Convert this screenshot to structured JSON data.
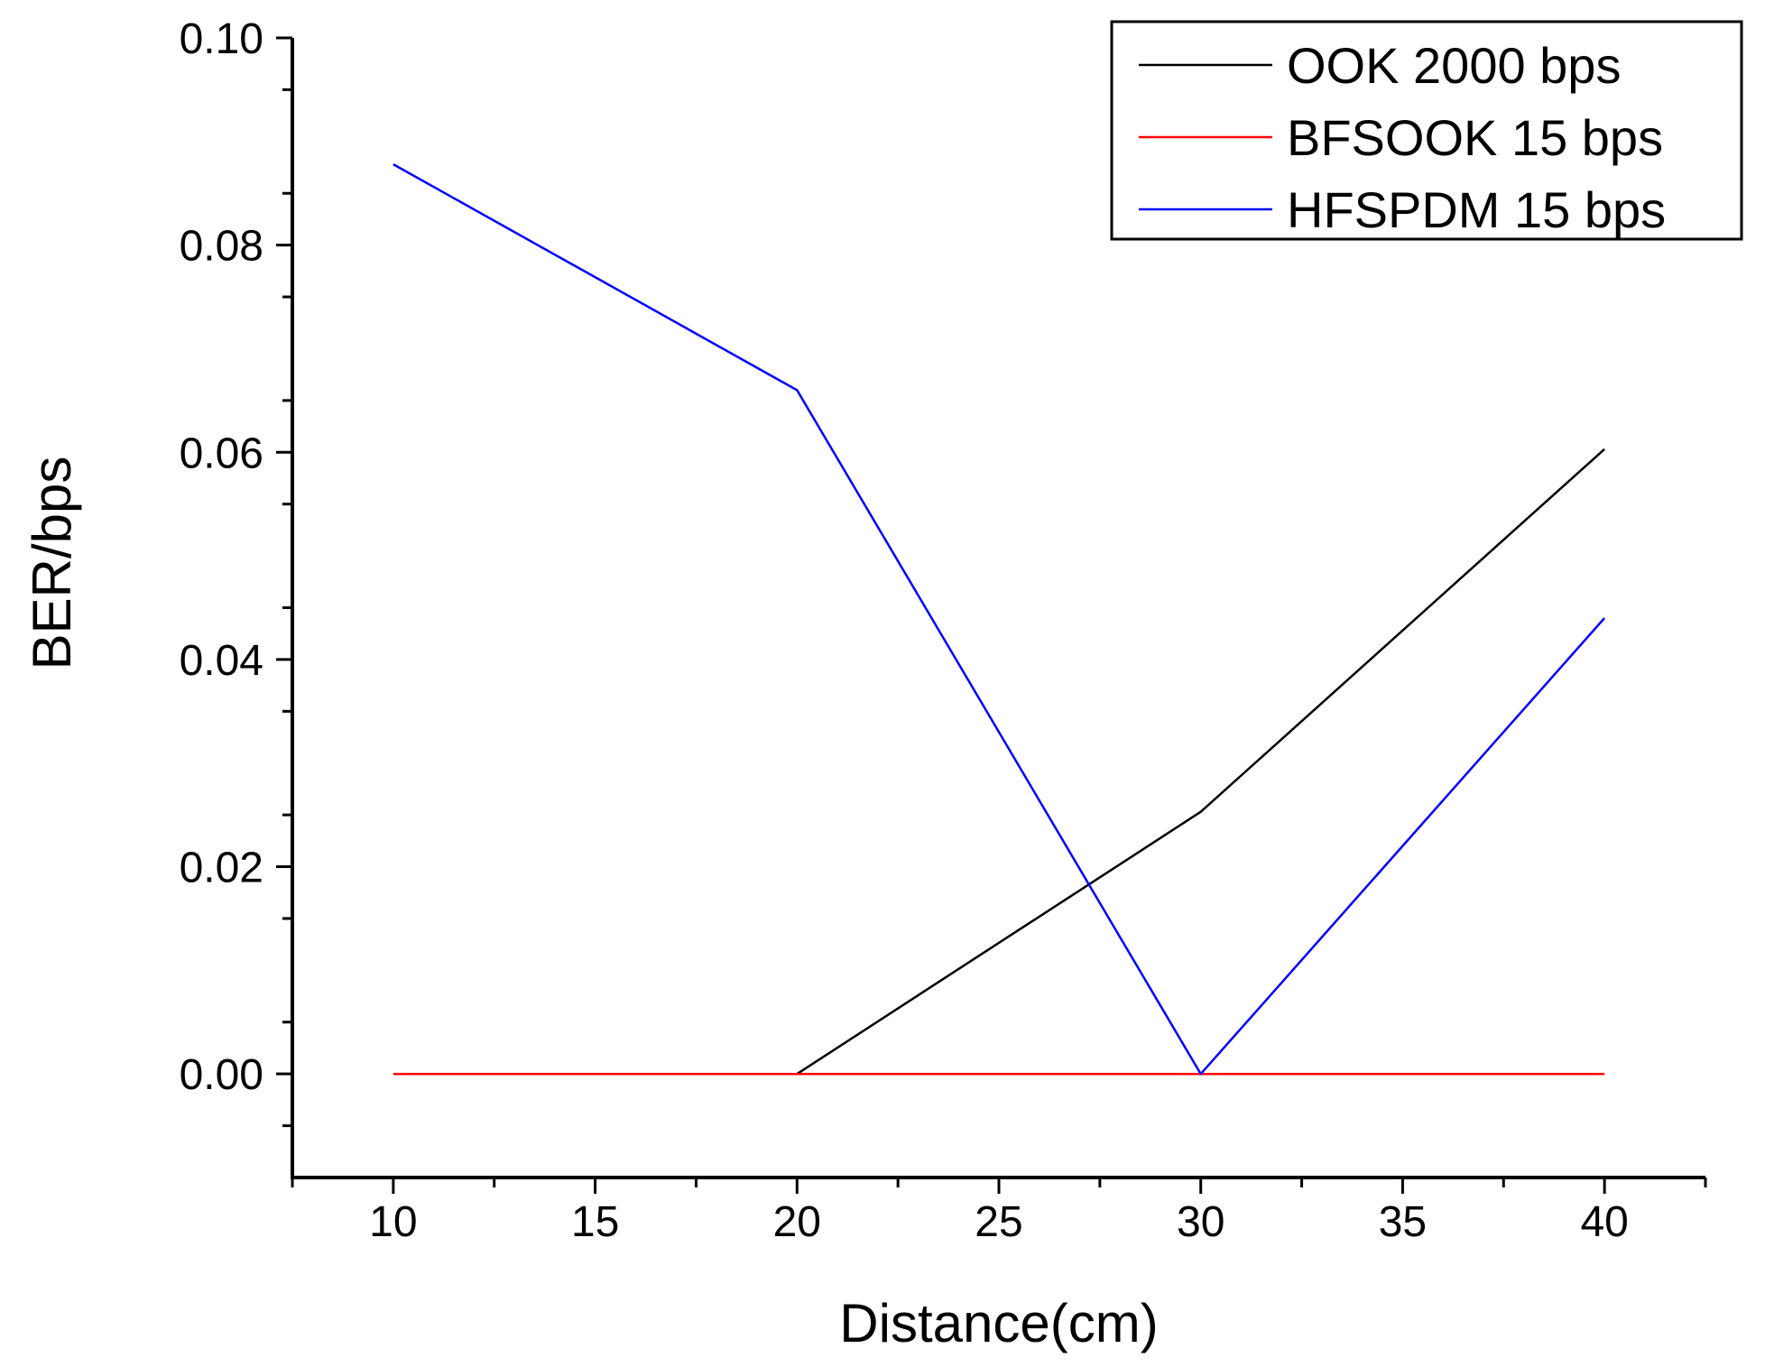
{
  "chart_data": {
    "type": "line",
    "title": "",
    "xlabel": "Distance(cm)",
    "ylabel": "BER/bps",
    "x": [
      10,
      20,
      30,
      40
    ],
    "xlim": [
      7.5,
      42.5
    ],
    "ylim": [
      -0.01,
      0.1
    ],
    "x_ticks": [
      10,
      15,
      20,
      25,
      30,
      35,
      40
    ],
    "x_tick_labels": [
      "10",
      "15",
      "20",
      "25",
      "30",
      "35",
      "40"
    ],
    "y_ticks": [
      0,
      0.02,
      0.04,
      0.06,
      0.08,
      0.1
    ],
    "y_tick_labels": [
      "0.00",
      "0.02",
      "0.04",
      "0.06",
      "0.08",
      "0.10"
    ],
    "grid": false,
    "legend_position": "top-right",
    "series": [
      {
        "name": "OOK 2000 bps",
        "color": "#000000",
        "values": [
          null,
          0.0,
          0.0253,
          0.0603
        ]
      },
      {
        "name": "BFSOOK 15 bps",
        "color": "#ff0000",
        "values": [
          0.0,
          0.0,
          0.0,
          0.0
        ]
      },
      {
        "name": "HFSPDM 15 bps",
        "color": "#0000ff",
        "values": [
          0.0878,
          0.066,
          0.0,
          0.044
        ]
      }
    ]
  }
}
